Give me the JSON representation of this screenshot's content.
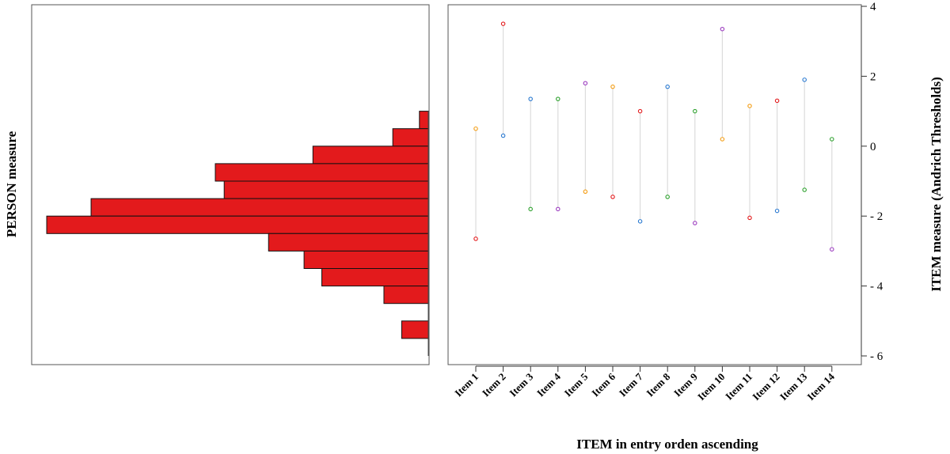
{
  "chart_data": [
    {
      "type": "bar",
      "orientation": "horizontal",
      "ylabel": "PERSON measure",
      "bin_width": 0.5,
      "y_lower_edges": [
        0.5,
        0.0,
        -0.5,
        -1.0,
        -1.5,
        -2.0,
        -2.5,
        -3.0,
        -3.5,
        -4.0,
        -4.5,
        -5.0,
        -5.5
      ],
      "counts": [
        1,
        4,
        13,
        24,
        23,
        38,
        43,
        18,
        14,
        12,
        5,
        0,
        3
      ],
      "max_count": 43,
      "ylim": [
        -6.3,
        4.1
      ],
      "color": "#e31a1c"
    },
    {
      "type": "scatter",
      "xlabel": "ITEM in entry orden ascending",
      "ylabel": "ITEM measure (Andrich Thresholds)",
      "ylim": [
        -6.3,
        4.1
      ],
      "yticks": [
        4,
        2,
        0,
        -2,
        -4,
        -6
      ],
      "ytick_labels": [
        "4",
        "2",
        "0",
        "- 2",
        "- 4",
        "- 6"
      ],
      "categories": [
        "Item 1",
        "Item 2",
        "Item 3",
        "Item 4",
        "Item 5",
        "Item 6",
        "Item 7",
        "Item 8",
        "Item 9",
        "Item 10",
        "Item 11",
        "Item 12",
        "Item 13",
        "Item 14"
      ],
      "points": [
        [
          [
            0.5,
            "#f39c12"
          ],
          [
            -2.65,
            "#e31a1c"
          ]
        ],
        [
          [
            3.5,
            "#e31a1c"
          ],
          [
            0.3,
            "#2878d0"
          ]
        ],
        [
          [
            1.35,
            "#2878d0"
          ],
          [
            -1.8,
            "#2ca02c"
          ]
        ],
        [
          [
            1.35,
            "#2ca02c"
          ],
          [
            -1.8,
            "#9b3bbf"
          ]
        ],
        [
          [
            1.8,
            "#9b3bbf"
          ],
          [
            -1.3,
            "#f39c12"
          ]
        ],
        [
          [
            1.7,
            "#f39c12"
          ],
          [
            -1.45,
            "#e31a1c"
          ]
        ],
        [
          [
            1.0,
            "#e31a1c"
          ],
          [
            -2.15,
            "#2878d0"
          ]
        ],
        [
          [
            1.7,
            "#2878d0"
          ],
          [
            -1.45,
            "#2ca02c"
          ]
        ],
        [
          [
            1.0,
            "#2ca02c"
          ],
          [
            -2.2,
            "#9b3bbf"
          ]
        ],
        [
          [
            3.35,
            "#9b3bbf"
          ],
          [
            0.2,
            "#f39c12"
          ]
        ],
        [
          [
            1.15,
            "#f39c12"
          ],
          [
            -2.05,
            "#e31a1c"
          ]
        ],
        [
          [
            1.3,
            "#e31a1c"
          ],
          [
            -1.85,
            "#2878d0"
          ]
        ],
        [
          [
            1.9,
            "#2878d0"
          ],
          [
            -1.25,
            "#2ca02c"
          ]
        ],
        [
          [
            0.2,
            "#2ca02c"
          ],
          [
            -2.95,
            "#9b3bbf"
          ]
        ]
      ]
    }
  ]
}
